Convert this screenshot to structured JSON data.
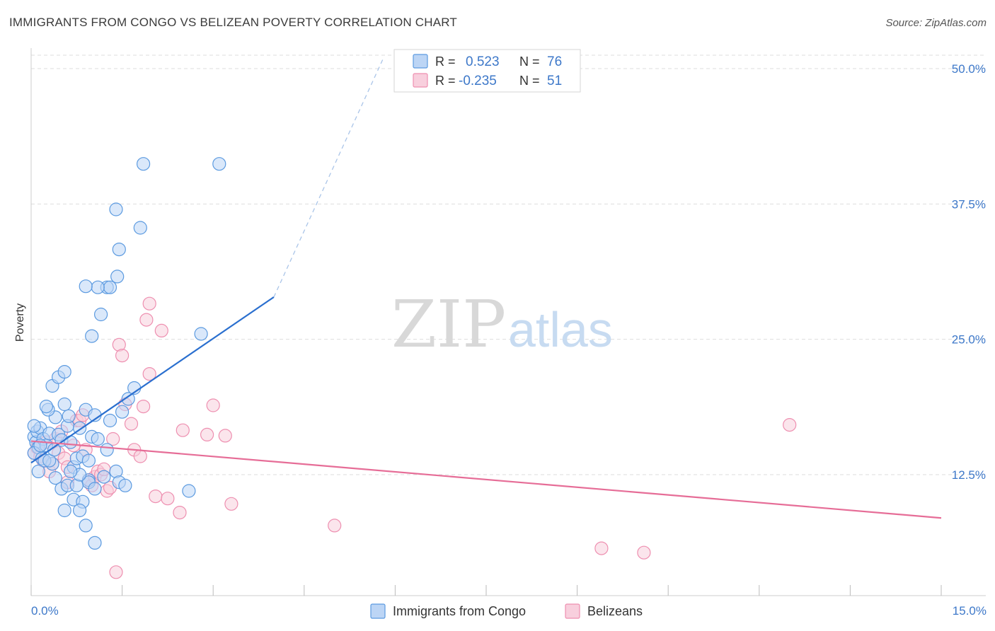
{
  "header": {
    "title": "IMMIGRANTS FROM CONGO VS BELIZEAN POVERTY CORRELATION CHART",
    "source": "Source: ZipAtlas.com"
  },
  "watermark": {
    "zip": "ZIP",
    "atlas": "atlas"
  },
  "colors": {
    "blue": "#5b9ae0",
    "blue_fill": "#bcd5f5",
    "blue_line": "#2a6fcf",
    "pink": "#ee8fb0",
    "pink_fill": "#f8cfdd",
    "pink_line": "#e66d97",
    "axis_text": "#3d78c9",
    "grid": "#dddddd"
  },
  "chart_data": {
    "type": "scatter",
    "title": "IMMIGRANTS FROM CONGO VS BELIZEAN POVERTY CORRELATION CHART",
    "xlabel": "",
    "ylabel": "Poverty",
    "xlim": [
      0,
      15
    ],
    "ylim": [
      2.5,
      52.5
    ],
    "x_tick_labels": [
      "0.0%",
      "15.0%"
    ],
    "y_ticks": [
      12.5,
      25.0,
      37.5,
      50.0
    ],
    "y_tick_labels": [
      "12.5%",
      "25.0%",
      "37.5%",
      "50.0%"
    ],
    "grid": true,
    "legend": {
      "position": "top-center",
      "rows": [
        {
          "r_label": "R =",
          "r_value": "0.523",
          "n_label": "N =",
          "n_value": "76"
        },
        {
          "r_label": "R =",
          "r_value": "-0.235",
          "n_label": "N =",
          "n_value": "51"
        }
      ]
    },
    "series": [
      {
        "name": "Immigrants from Congo",
        "color": "#5b9ae0",
        "R": 0.523,
        "N": 76,
        "trend": {
          "x": [
            0,
            4.0
          ],
          "y": [
            13.6,
            28.9
          ],
          "dashed_extension_to": [
            5.8,
            50.9
          ]
        },
        "points": [
          [
            0.05,
            16.0
          ],
          [
            0.08,
            15.5
          ],
          [
            0.1,
            16.5
          ],
          [
            0.12,
            15.0
          ],
          [
            0.15,
            16.8
          ],
          [
            0.05,
            14.5
          ],
          [
            0.2,
            15.8
          ],
          [
            0.18,
            14.0
          ],
          [
            0.25,
            15.2
          ],
          [
            0.3,
            16.3
          ],
          [
            0.35,
            13.5
          ],
          [
            0.4,
            17.8
          ],
          [
            0.28,
            18.5
          ],
          [
            0.45,
            16.2
          ],
          [
            0.22,
            13.8
          ],
          [
            0.5,
            15.7
          ],
          [
            0.55,
            19.0
          ],
          [
            0.6,
            17.0
          ],
          [
            0.65,
            15.5
          ],
          [
            0.7,
            13.2
          ],
          [
            0.75,
            14.0
          ],
          [
            0.8,
            16.8
          ],
          [
            0.85,
            14.2
          ],
          [
            0.9,
            18.5
          ],
          [
            0.95,
            12.0
          ],
          [
            1.0,
            16.0
          ],
          [
            1.05,
            18.0
          ],
          [
            1.1,
            15.8
          ],
          [
            1.2,
            12.3
          ],
          [
            1.25,
            14.8
          ],
          [
            1.3,
            17.5
          ],
          [
            1.4,
            12.8
          ],
          [
            1.45,
            11.8
          ],
          [
            1.5,
            18.3
          ],
          [
            1.6,
            19.5
          ],
          [
            1.7,
            20.5
          ],
          [
            0.35,
            20.7
          ],
          [
            0.45,
            21.5
          ],
          [
            0.55,
            22.0
          ],
          [
            0.4,
            12.2
          ],
          [
            0.5,
            11.2
          ],
          [
            0.6,
            11.5
          ],
          [
            0.75,
            11.5
          ],
          [
            0.55,
            9.2
          ],
          [
            0.7,
            10.2
          ],
          [
            0.85,
            10.0
          ],
          [
            0.8,
            9.2
          ],
          [
            0.95,
            11.8
          ],
          [
            1.05,
            11.2
          ],
          [
            0.9,
            7.8
          ],
          [
            1.05,
            6.2
          ],
          [
            0.95,
            13.8
          ],
          [
            0.8,
            12.5
          ],
          [
            0.65,
            12.8
          ],
          [
            1.0,
            25.3
          ],
          [
            1.15,
            27.3
          ],
          [
            1.25,
            29.8
          ],
          [
            1.3,
            29.8
          ],
          [
            1.42,
            30.8
          ],
          [
            1.1,
            29.8
          ],
          [
            0.9,
            29.9
          ],
          [
            1.45,
            33.3
          ],
          [
            1.4,
            37.0
          ],
          [
            1.8,
            35.3
          ],
          [
            1.85,
            41.2
          ],
          [
            3.1,
            41.2
          ],
          [
            2.8,
            25.5
          ],
          [
            2.6,
            11.0
          ],
          [
            1.55,
            11.5
          ],
          [
            0.25,
            18.8
          ],
          [
            0.15,
            15.2
          ],
          [
            0.3,
            13.8
          ],
          [
            0.12,
            12.8
          ],
          [
            0.38,
            14.8
          ],
          [
            0.05,
            17.0
          ],
          [
            0.62,
            17.9
          ]
        ]
      },
      {
        "name": "Belizeans",
        "color": "#ee8fb0",
        "R": -0.235,
        "N": 51,
        "trend": {
          "x": [
            0,
            15
          ],
          "y": [
            15.6,
            8.5
          ]
        },
        "points": [
          [
            0.05,
            14.5
          ],
          [
            0.1,
            15.0
          ],
          [
            0.15,
            14.2
          ],
          [
            0.2,
            13.8
          ],
          [
            0.25,
            15.5
          ],
          [
            0.3,
            12.8
          ],
          [
            0.35,
            13.5
          ],
          [
            0.4,
            15.8
          ],
          [
            0.45,
            14.5
          ],
          [
            0.5,
            16.5
          ],
          [
            0.55,
            14.0
          ],
          [
            0.6,
            13.2
          ],
          [
            0.7,
            15.2
          ],
          [
            0.75,
            17.5
          ],
          [
            0.8,
            17.5
          ],
          [
            0.85,
            18.0
          ],
          [
            0.9,
            14.8
          ],
          [
            0.95,
            12.0
          ],
          [
            1.0,
            11.5
          ],
          [
            1.05,
            12.3
          ],
          [
            1.1,
            12.8
          ],
          [
            1.15,
            12.5
          ],
          [
            1.2,
            13.0
          ],
          [
            1.25,
            11.0
          ],
          [
            1.3,
            11.3
          ],
          [
            1.35,
            15.8
          ],
          [
            1.45,
            24.5
          ],
          [
            1.5,
            23.5
          ],
          [
            1.55,
            19.0
          ],
          [
            1.65,
            17.2
          ],
          [
            1.7,
            14.8
          ],
          [
            1.8,
            14.2
          ],
          [
            1.85,
            18.8
          ],
          [
            1.9,
            26.8
          ],
          [
            1.95,
            28.3
          ],
          [
            2.15,
            25.8
          ],
          [
            1.95,
            21.8
          ],
          [
            2.05,
            10.5
          ],
          [
            2.25,
            10.3
          ],
          [
            2.45,
            9.0
          ],
          [
            2.5,
            16.6
          ],
          [
            2.9,
            16.2
          ],
          [
            3.0,
            18.9
          ],
          [
            3.2,
            16.1
          ],
          [
            3.3,
            9.8
          ],
          [
            5.0,
            7.8
          ],
          [
            9.4,
            5.7
          ],
          [
            10.1,
            5.3
          ],
          [
            12.5,
            17.1
          ],
          [
            1.4,
            3.5
          ],
          [
            0.6,
            11.8
          ]
        ]
      }
    ]
  },
  "bottom_legend": {
    "items": [
      {
        "label": "Immigrants from Congo"
      },
      {
        "label": "Belizeans"
      }
    ]
  },
  "axis": {
    "y_label": "Poverty",
    "x_min_label": "0.0%",
    "x_max_label": "15.0%"
  }
}
